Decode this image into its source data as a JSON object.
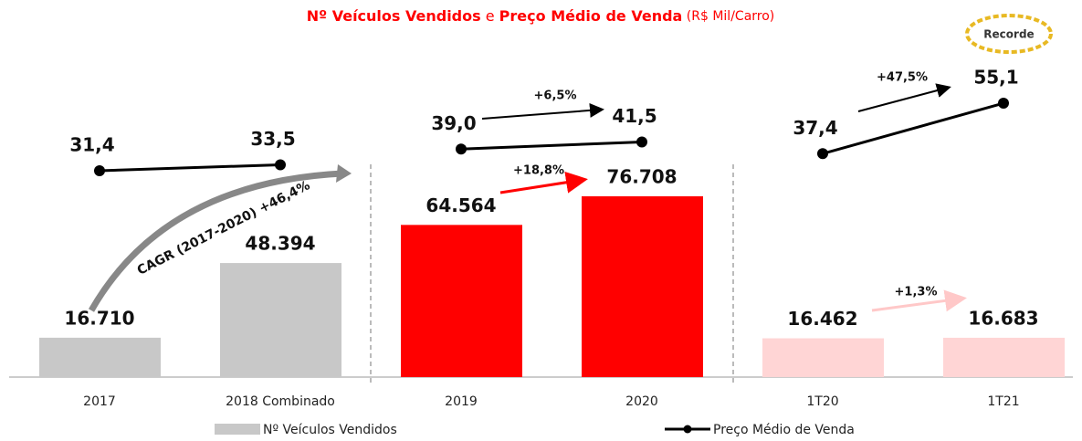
{
  "chart_data": {
    "type": "bar",
    "title_parts": [
      "Nº Veículos Vendidos",
      " e ",
      "Preço Médio de Venda",
      " (R$ Mil/Carro)"
    ],
    "categories": [
      "2017",
      "2018 Combinado",
      "2019",
      "2020",
      "1T20",
      "1T21"
    ],
    "series": [
      {
        "name": "Nº Veículos Vendidos",
        "type": "bar",
        "color": "#c8c8c8",
        "colors": [
          "#c8c8c8",
          "#c8c8c8",
          "#ff0000",
          "#ff0000",
          "#ffd5d5",
          "#ffd5d5"
        ],
        "values": [
          16710,
          48394,
          64564,
          76708,
          16462,
          16683
        ],
        "value_labels": [
          "16.710",
          "48.394",
          "64.564",
          "76.708",
          "16.462",
          "16.683"
        ]
      },
      {
        "name": "Preço Médio de Venda",
        "type": "line",
        "axis": "y2",
        "color": "#000000",
        "values": [
          31.4,
          33.5,
          39.0,
          41.5,
          37.4,
          55.1
        ],
        "value_labels": [
          "31,4",
          "33,5",
          "39,0",
          "41,5",
          "37,4",
          "55,1"
        ]
      }
    ],
    "ylim": [
      0,
      144500
    ],
    "y2lim": [
      -41,
      78.5
    ],
    "annotations": [
      "CAGR (2017-2020) +46,4%",
      "+6,5%",
      "+18,8%",
      "+47,5%",
      "+1,3%",
      "Recorde"
    ]
  }
}
